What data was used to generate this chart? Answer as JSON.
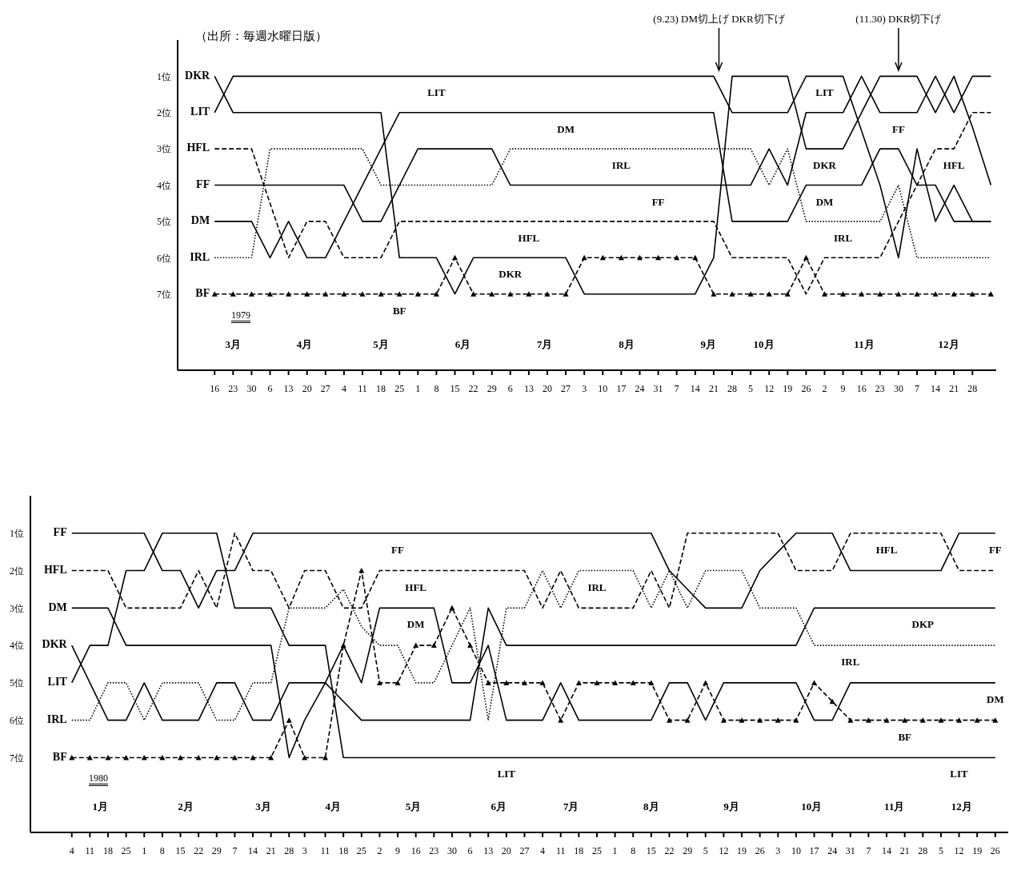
{
  "chart_data": [
    {
      "type": "line",
      "marker": "none",
      "x": [
        "1979-03-16",
        "1979-03-23",
        "1979-03-30",
        "1979-04-06",
        "1979-04-13",
        "1979-04-20",
        "1979-04-27",
        "1979-05-04",
        "1979-05-11",
        "1979-05-18",
        "1979-05-25",
        "1979-06-01",
        "1979-06-08",
        "1979-06-15",
        "1979-06-22",
        "1979-06-29",
        "1979-07-06",
        "1979-07-13",
        "1979-07-20",
        "1979-07-27",
        "1979-08-03",
        "1979-08-10",
        "1979-08-17",
        "1979-08-24",
        "1979-08-31",
        "1979-09-07",
        "1979-09-14",
        "1979-09-21",
        "1979-09-28",
        "1979-10-05",
        "1979-10-12",
        "1979-10-19",
        "1979-10-26",
        "1979-11-02",
        "1979-11-09",
        "1979-11-16",
        "1979-11-23",
        "1979-11-30",
        "1979-12-07",
        "1979-12-14",
        "1979-12-21",
        "1979-12-28",
        "1980-01-04"
      ],
      "xlim": [
        "1979-03-02",
        "1980-01-06"
      ],
      "xticks": [
        {
          "value": "1979-03-16",
          "label": "16"
        },
        {
          "value": "1979-03-23",
          "label": "23"
        },
        {
          "value": "1979-03-30",
          "label": "30"
        },
        {
          "value": "1979-04-06",
          "label": "6"
        },
        {
          "value": "1979-04-13",
          "label": "13"
        },
        {
          "value": "1979-04-20",
          "label": "20"
        },
        {
          "value": "1979-04-27",
          "label": "27"
        },
        {
          "value": "1979-05-04",
          "label": "4"
        },
        {
          "value": "1979-05-11",
          "label": "11"
        },
        {
          "value": "1979-05-18",
          "label": "18"
        },
        {
          "value": "1979-05-25",
          "label": "25"
        },
        {
          "value": "1979-06-01",
          "label": "1"
        },
        {
          "value": "1979-06-08",
          "label": "8"
        },
        {
          "value": "1979-06-15",
          "label": "15"
        },
        {
          "value": "1979-06-22",
          "label": "22"
        },
        {
          "value": "1979-06-29",
          "label": "29"
        },
        {
          "value": "1979-07-06",
          "label": "6"
        },
        {
          "value": "1979-07-13",
          "label": "13"
        },
        {
          "value": "1979-07-20",
          "label": "20"
        },
        {
          "value": "1979-07-27",
          "label": "27"
        },
        {
          "value": "1979-08-03",
          "label": "3"
        },
        {
          "value": "1979-08-10",
          "label": "10"
        },
        {
          "value": "1979-08-17",
          "label": "17"
        },
        {
          "value": "1979-08-24",
          "label": "24"
        },
        {
          "value": "1979-08-31",
          "label": "31"
        },
        {
          "value": "1979-09-07",
          "label": "7"
        },
        {
          "value": "1979-09-14",
          "label": "14"
        },
        {
          "value": "1979-09-21",
          "label": "21"
        },
        {
          "value": "1979-09-28",
          "label": "28"
        },
        {
          "value": "1979-10-05",
          "label": "5"
        },
        {
          "value": "1979-10-12",
          "label": "12"
        },
        {
          "value": "1979-10-19",
          "label": "19"
        },
        {
          "value": "1979-10-26",
          "label": "26"
        },
        {
          "value": "1979-11-02",
          "label": "2"
        },
        {
          "value": "1979-11-09",
          "label": "9"
        },
        {
          "value": "1979-11-16",
          "label": "16"
        },
        {
          "value": "1979-11-23",
          "label": "23"
        },
        {
          "value": "1979-11-30",
          "label": "30"
        },
        {
          "value": "1979-12-07",
          "label": "7"
        },
        {
          "value": "1979-12-14",
          "label": "14"
        },
        {
          "value": "1979-12-21",
          "label": "21"
        },
        {
          "value": "1979-12-28",
          "label": "28"
        }
      ],
      "ylim": [
        9.1,
        0
      ],
      "yticks": [
        {
          "value": 1,
          "label": "1位"
        },
        {
          "value": 2,
          "label": "2位"
        },
        {
          "value": 3,
          "label": "3位"
        },
        {
          "value": 4,
          "label": "4位"
        },
        {
          "value": 5,
          "label": "5位"
        },
        {
          "value": 6,
          "label": "6位"
        },
        {
          "value": 7,
          "label": "7位"
        }
      ],
      "series": [
        {
          "name": "DKR",
          "color": "#000000",
          "line_style": "solid",
          "values": [
            1,
            2,
            2,
            2,
            2,
            2,
            2,
            2,
            2,
            2,
            6,
            6,
            6,
            7,
            6,
            6,
            6,
            6,
            6,
            6,
            7,
            7,
            7,
            7,
            7,
            7,
            7,
            6,
            1,
            1,
            1,
            1,
            3,
            3,
            3,
            2,
            1,
            1,
            1,
            2,
            1,
            2.4,
            4
          ]
        },
        {
          "name": "LIT",
          "color": "#000000",
          "line_style": "solid",
          "values": [
            2,
            1,
            1,
            1,
            1,
            1,
            1,
            1,
            1,
            1,
            1,
            1,
            1,
            1,
            1,
            1,
            1,
            1,
            1,
            1,
            1,
            1,
            1,
            1,
            1,
            1,
            1,
            1,
            2,
            2,
            2,
            2,
            1,
            1,
            1,
            2.5,
            4,
            6,
            3,
            5,
            4,
            5,
            5
          ]
        },
        {
          "name": "HFL",
          "color": "#000000",
          "line_style": "dashed",
          "values": [
            3,
            3,
            3,
            4.5,
            6,
            5,
            5,
            6,
            6,
            6,
            5,
            5,
            5,
            5,
            5,
            5,
            5,
            5,
            5,
            5,
            5,
            5,
            5,
            5,
            5,
            5,
            5,
            5,
            6,
            6,
            6,
            6,
            7,
            6,
            6,
            6,
            6,
            5,
            4,
            3,
            3,
            2,
            2
          ]
        },
        {
          "name": "FF",
          "color": "#000000",
          "line_style": "solid",
          "values": [
            4,
            4,
            4,
            4,
            4,
            4,
            4,
            4,
            5,
            5,
            4,
            3,
            3,
            3,
            3,
            3,
            4,
            4,
            4,
            4,
            4,
            4,
            4,
            4,
            4,
            4,
            4,
            4,
            4,
            4,
            3,
            4,
            2,
            2,
            2,
            1,
            2,
            2,
            2,
            1,
            2,
            1,
            1
          ]
        },
        {
          "name": "DM",
          "color": "#000000",
          "line_style": "solid",
          "values": [
            5,
            5,
            5,
            6,
            5,
            6,
            6,
            5,
            4,
            3,
            2,
            2,
            2,
            2,
            2,
            2,
            2,
            2,
            2,
            2,
            2,
            2,
            2,
            2,
            2,
            2,
            2,
            2,
            5,
            5,
            5,
            5,
            4,
            4,
            4,
            4,
            3,
            3,
            4,
            4,
            5,
            5,
            5
          ]
        },
        {
          "name": "IRL",
          "color": "#000000",
          "line_style": "dotted",
          "values": [
            6,
            6,
            6,
            3,
            3,
            3,
            3,
            3,
            3,
            4,
            4,
            4,
            4,
            4,
            4,
            4,
            3,
            3,
            3,
            3,
            3,
            3,
            3,
            3,
            3,
            3,
            3,
            3,
            3,
            3,
            4,
            3,
            5,
            5,
            5,
            5,
            5,
            4,
            6,
            6,
            6,
            6,
            6
          ]
        },
        {
          "name": "BF",
          "color": "#000000",
          "line_style": "dashed",
          "marker": "triangle",
          "values": [
            7,
            7,
            7,
            7,
            7,
            7,
            7,
            7,
            7,
            7,
            7,
            7,
            7,
            6,
            7,
            7,
            7,
            7,
            7,
            7,
            6,
            6,
            6,
            6,
            6,
            6,
            6,
            7,
            7,
            7,
            7,
            7,
            6,
            7,
            7,
            7,
            7,
            7,
            7,
            7,
            7,
            7,
            7
          ]
        }
      ],
      "ref_lines": [
        {
          "axis": "x",
          "value": "1979-09-23",
          "label": "(9.23) DM切上げ DKR切下げ"
        },
        {
          "axis": "x",
          "value": "1979-11-30",
          "label": "(11.30) DKR切下げ"
        }
      ],
      "x2lim": [
        "1979-03-02",
        "1980-01-06"
      ],
      "x2ticks": [
        {
          "value": "1979-03-23",
          "label": "3月"
        },
        {
          "value": "1979-04-19",
          "label": "4月"
        },
        {
          "value": "1979-05-18",
          "label": "5月"
        },
        {
          "value": "1979-06-18",
          "label": "6月"
        },
        {
          "value": "1979-07-19",
          "label": "7月"
        },
        {
          "value": "1979-08-19",
          "label": "8月"
        },
        {
          "value": "1979-09-19",
          "label": "9月"
        },
        {
          "value": "1979-10-10",
          "label": "10月"
        },
        {
          "value": "1979-11-17",
          "label": "11月"
        },
        {
          "value": "1979-12-19",
          "label": "12月"
        }
      ],
      "annotations": [
        "（出所：毎週水曜日版）",
        "1979",
        {
          "text": "LIT",
          "x": "1979-06-08",
          "y": 1
        },
        {
          "text": "DM",
          "x": "1979-07-27",
          "y": 2
        },
        {
          "text": "IRL",
          "x": "1979-08-17",
          "y": 3
        },
        {
          "text": "FF",
          "x": "1979-08-31",
          "y": 4
        },
        {
          "text": "HFL",
          "x": "1979-07-13",
          "y": 5
        },
        {
          "text": "DKR",
          "x": "1979-07-06",
          "y": 6
        },
        {
          "text": "BF",
          "x": "1979-05-25",
          "y": 7
        },
        {
          "text": "LIT",
          "x": "1979-11-02",
          "y": 1
        },
        {
          "text": "FF",
          "x": "1979-11-30",
          "y": 2
        },
        {
          "text": "DKR",
          "x": "1979-11-02",
          "y": 3
        },
        {
          "text": "DM",
          "x": "1979-11-02",
          "y": 4
        },
        {
          "text": "IRL",
          "x": "1979-11-09",
          "y": 5
        },
        {
          "text": "HFL",
          "x": "1979-12-21",
          "y": 3
        }
      ]
    },
    {
      "type": "line",
      "marker": "none",
      "x": [
        "1980-01-04",
        "1980-01-11",
        "1980-01-18",
        "1980-01-25",
        "1980-02-01",
        "1980-02-08",
        "1980-02-15",
        "1980-02-22",
        "1980-02-29",
        "1980-03-07",
        "1980-03-14",
        "1980-03-21",
        "1980-03-28",
        "1980-04-03",
        "1980-04-11",
        "1980-04-18",
        "1980-04-25",
        "1980-05-02",
        "1980-05-09",
        "1980-05-16",
        "1980-05-23",
        "1980-05-30",
        "1980-06-06",
        "1980-06-13",
        "1980-06-20",
        "1980-06-27",
        "1980-07-04",
        "1980-07-11",
        "1980-07-18",
        "1980-07-25",
        "1980-08-01",
        "1980-08-08",
        "1980-08-15",
        "1980-08-22",
        "1980-08-29",
        "1980-09-05",
        "1980-09-12",
        "1980-09-19",
        "1980-09-26",
        "1980-10-03",
        "1980-10-10",
        "1980-10-17",
        "1980-10-24",
        "1980-10-31",
        "1980-11-07",
        "1980-11-14",
        "1980-11-21",
        "1980-11-28",
        "1980-12-05",
        "1980-12-12",
        "1980-12-19",
        "1980-12-26"
      ],
      "xlim": [
        "1979-12-19",
        "1980-12-31"
      ],
      "xticks": [
        {
          "value": "1980-01-04",
          "label": "4"
        },
        {
          "value": "1980-01-11",
          "label": "11"
        },
        {
          "value": "1980-01-18",
          "label": "18"
        },
        {
          "value": "1980-01-25",
          "label": "25"
        },
        {
          "value": "1980-02-01",
          "label": "1"
        },
        {
          "value": "1980-02-08",
          "label": "8"
        },
        {
          "value": "1980-02-15",
          "label": "15"
        },
        {
          "value": "1980-02-22",
          "label": "22"
        },
        {
          "value": "1980-02-29",
          "label": "29"
        },
        {
          "value": "1980-03-07",
          "label": "7"
        },
        {
          "value": "1980-03-14",
          "label": "14"
        },
        {
          "value": "1980-03-21",
          "label": "21"
        },
        {
          "value": "1980-03-28",
          "label": "28"
        },
        {
          "value": "1980-04-03",
          "label": "3"
        },
        {
          "value": "1980-04-11",
          "label": "11"
        },
        {
          "value": "1980-04-18",
          "label": "18"
        },
        {
          "value": "1980-04-25",
          "label": "25"
        },
        {
          "value": "1980-05-02",
          "label": "2"
        },
        {
          "value": "1980-05-09",
          "label": "9"
        },
        {
          "value": "1980-05-16",
          "label": "16"
        },
        {
          "value": "1980-05-23",
          "label": "23"
        },
        {
          "value": "1980-05-30",
          "label": "30"
        },
        {
          "value": "1980-06-06",
          "label": "6"
        },
        {
          "value": "1980-06-13",
          "label": "13"
        },
        {
          "value": "1980-06-20",
          "label": "20"
        },
        {
          "value": "1980-06-27",
          "label": "27"
        },
        {
          "value": "1980-07-04",
          "label": "4"
        },
        {
          "value": "1980-07-11",
          "label": "11"
        },
        {
          "value": "1980-07-18",
          "label": "18"
        },
        {
          "value": "1980-07-25",
          "label": "25"
        },
        {
          "value": "1980-08-01",
          "label": "1"
        },
        {
          "value": "1980-08-08",
          "label": "8"
        },
        {
          "value": "1980-08-15",
          "label": "15"
        },
        {
          "value": "1980-08-22",
          "label": "22"
        },
        {
          "value": "1980-08-29",
          "label": "29"
        },
        {
          "value": "1980-09-05",
          "label": "5"
        },
        {
          "value": "1980-09-12",
          "label": "12"
        },
        {
          "value": "1980-09-19",
          "label": "19"
        },
        {
          "value": "1980-09-26",
          "label": "26"
        },
        {
          "value": "1980-10-03",
          "label": "3"
        },
        {
          "value": "1980-10-10",
          "label": "10"
        },
        {
          "value": "1980-10-17",
          "label": "17"
        },
        {
          "value": "1980-10-24",
          "label": "24"
        },
        {
          "value": "1980-10-31",
          "label": "31"
        },
        {
          "value": "1980-11-07",
          "label": "7"
        },
        {
          "value": "1980-11-14",
          "label": "14"
        },
        {
          "value": "1980-11-21",
          "label": "21"
        },
        {
          "value": "1980-11-28",
          "label": "28"
        },
        {
          "value": "1980-12-05",
          "label": "5"
        },
        {
          "value": "1980-12-12",
          "label": "12"
        },
        {
          "value": "1980-12-19",
          "label": "19"
        },
        {
          "value": "1980-12-26",
          "label": "26"
        }
      ],
      "ylim": [
        9,
        0
      ],
      "yticks": [
        {
          "value": 1,
          "label": "1位"
        },
        {
          "value": 2,
          "label": "2位"
        },
        {
          "value": 3,
          "label": "3位"
        },
        {
          "value": 4,
          "label": "4位"
        },
        {
          "value": 5,
          "label": "5位"
        },
        {
          "value": 6,
          "label": "6位"
        },
        {
          "value": 7,
          "label": "7位"
        }
      ],
      "series": [
        {
          "name": "FF",
          "color": "#000000",
          "line_style": "solid",
          "values": [
            1,
            1,
            1,
            1,
            1,
            2,
            2,
            3,
            2,
            2,
            1,
            1,
            1,
            1,
            1,
            1,
            1,
            1,
            1,
            1,
            1,
            1,
            1,
            1,
            1,
            1,
            1,
            1,
            1,
            1,
            1,
            1,
            1,
            2,
            2.5,
            3,
            3,
            3,
            2,
            1.5,
            1,
            1,
            1,
            2,
            2,
            2,
            2,
            2,
            2,
            1,
            1,
            1
          ]
        },
        {
          "name": "HFL",
          "color": "#000000",
          "line_style": "dashed",
          "values": [
            2,
            2,
            2,
            3,
            3,
            3,
            3,
            2,
            3,
            1,
            2,
            2,
            3,
            2,
            2,
            3,
            3,
            2,
            2,
            2,
            2,
            2,
            2,
            2,
            2,
            2,
            3,
            2,
            3,
            3,
            3,
            3,
            2,
            3,
            1,
            1,
            1,
            1,
            1,
            1,
            2,
            2,
            2,
            1,
            1,
            1,
            1,
            1,
            1,
            2,
            2,
            2
          ]
        },
        {
          "name": "DM",
          "color": "#000000",
          "line_style": "solid",
          "values": [
            3,
            3,
            3,
            4,
            4,
            4,
            4,
            4,
            4,
            4,
            4,
            4,
            7,
            6,
            5,
            4,
            5,
            3,
            3,
            3,
            3,
            5,
            5,
            4,
            6,
            6,
            6,
            5,
            6,
            6,
            6,
            6,
            6,
            5,
            5,
            6,
            5,
            5,
            5,
            5,
            5,
            6,
            6,
            5,
            5,
            5,
            5,
            5,
            5,
            5,
            5,
            5
          ]
        },
        {
          "name": "DKR",
          "color": "#000000",
          "line_style": "solid",
          "values": [
            4,
            5,
            6,
            6,
            5,
            6,
            6,
            6,
            5,
            5,
            6,
            6,
            5,
            5,
            5,
            5.5,
            6,
            6,
            6,
            6,
            6,
            6,
            6,
            3,
            4,
            4,
            4,
            4,
            4,
            4,
            4,
            4,
            4,
            4,
            4,
            4,
            4,
            4,
            4,
            4,
            4,
            3,
            3,
            3,
            3,
            3,
            3,
            3,
            3,
            3,
            3,
            3
          ]
        },
        {
          "name": "LIT",
          "color": "#000000",
          "line_style": "solid",
          "values": [
            5,
            4,
            4,
            2,
            2,
            1,
            1,
            1,
            1,
            3,
            3,
            3,
            4,
            4,
            4,
            7,
            7,
            7,
            7,
            7,
            7,
            7,
            7,
            7,
            7,
            7,
            7,
            7,
            7,
            7,
            7,
            7,
            7,
            7,
            7,
            7,
            7,
            7,
            7,
            7,
            7,
            7,
            7,
            7,
            7,
            7,
            7,
            7,
            7,
            7,
            7,
            7
          ]
        },
        {
          "name": "IRL",
          "color": "#000000",
          "line_style": "dotted",
          "values": [
            6,
            6,
            5,
            5,
            6,
            5,
            5,
            5,
            6,
            6,
            5,
            5,
            3,
            3,
            3,
            2.5,
            3.5,
            4,
            4,
            5,
            5,
            4,
            3,
            6,
            3,
            3,
            2,
            3,
            2,
            2,
            2,
            2,
            3,
            2,
            3,
            2,
            2,
            2,
            3,
            3,
            3,
            4,
            4,
            4,
            4,
            4,
            4,
            4,
            4,
            4,
            4,
            4
          ]
        },
        {
          "name": "BF",
          "color": "#000000",
          "line_style": "dashed",
          "marker": "triangle",
          "values": [
            7,
            7,
            7,
            7,
            7,
            7,
            7,
            7,
            7,
            7,
            7,
            7,
            6,
            7,
            7,
            4,
            2,
            5,
            5,
            4,
            4,
            3,
            4,
            5,
            5,
            5,
            5,
            6,
            5,
            5,
            5,
            5,
            5,
            6,
            6,
            5,
            6,
            6,
            6,
            6,
            6,
            5,
            5.5,
            6,
            6,
            6,
            6,
            6,
            6,
            6,
            6,
            6
          ]
        }
      ],
      "x2lim": [
        "1979-12-19",
        "1980-12-31"
      ],
      "x2ticks": [
        {
          "value": "1980-01-15",
          "label": "1月"
        },
        {
          "value": "1980-02-17",
          "label": "2月"
        },
        {
          "value": "1980-03-18",
          "label": "3月"
        },
        {
          "value": "1980-04-14",
          "label": "4月"
        },
        {
          "value": "1980-05-15",
          "label": "5月"
        },
        {
          "value": "1980-06-17",
          "label": "6月"
        },
        {
          "value": "1980-07-15",
          "label": "7月"
        },
        {
          "value": "1980-08-15",
          "label": "8月"
        },
        {
          "value": "1980-09-15",
          "label": "9月"
        },
        {
          "value": "1980-10-16",
          "label": "10月"
        },
        {
          "value": "1980-11-17",
          "label": "11月"
        },
        {
          "value": "1980-12-13",
          "label": "12月"
        }
      ],
      "annotations": [
        "1980",
        {
          "text": "FF",
          "x": "1980-05-09",
          "y": 1
        },
        {
          "text": "HFL",
          "x": "1980-05-16",
          "y": 2
        },
        {
          "text": "DM",
          "x": "1980-05-16",
          "y": 3
        },
        {
          "text": "IRL",
          "x": "1980-07-25",
          "y": 2
        },
        {
          "text": "LIT",
          "x": "1980-06-20",
          "y": 7
        },
        {
          "text": "HFL",
          "x": "1980-11-14",
          "y": 1
        },
        {
          "text": "FF",
          "x": "1980-12-26",
          "y": 1
        },
        {
          "text": "DKP",
          "x": "1980-11-28",
          "y": 3
        },
        {
          "text": "IRL",
          "x": "1980-10-31",
          "y": 4
        },
        {
          "text": "DM",
          "x": "1980-12-26",
          "y": 5
        },
        {
          "text": "BF",
          "x": "1980-11-21",
          "y": 6
        },
        {
          "text": "LIT",
          "x": "1980-12-12",
          "y": 7
        }
      ]
    }
  ]
}
